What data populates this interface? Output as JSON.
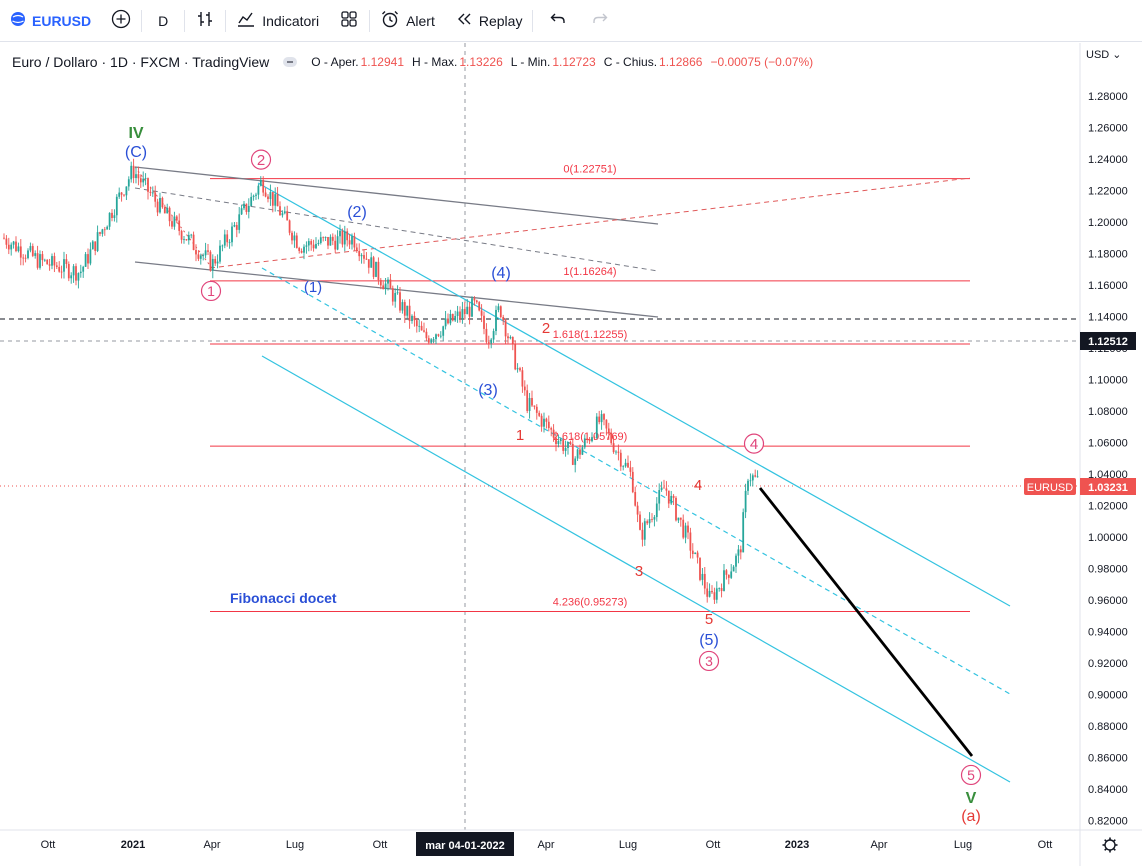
{
  "toolbar": {
    "symbol": "EURUSD",
    "interval": "D",
    "indicators_label": "Indicatori",
    "alert_label": "Alert",
    "replay_label": "Replay"
  },
  "legend": {
    "title": "Euro / Dollaro · 1D · FXCM · TradingView",
    "o_label": "O - Aper.",
    "o_value": "1.12941",
    "h_label": "H - Max.",
    "h_value": "1.13226",
    "l_label": "L - Min.",
    "l_value": "1.12723",
    "c_label": "C - Chius.",
    "c_value": "1.12866",
    "change": "−0.00075 (−0.07%)"
  },
  "price_axis": {
    "currency": "USD",
    "ticks": [
      "1.28000",
      "1.26000",
      "1.24000",
      "1.22000",
      "1.20000",
      "1.18000",
      "1.16000",
      "1.14000",
      "1.12000",
      "1.10000",
      "1.08000",
      "1.06000",
      "1.04000",
      "1.02000",
      "1.00000",
      "0.98000",
      "0.96000",
      "0.94000",
      "0.92000",
      "0.90000",
      "0.88000",
      "0.86000",
      "0.84000",
      "0.82000"
    ],
    "crosshair_price": "1.12512",
    "last_symbol": "EURUSD",
    "last_price": "1.03231"
  },
  "time_axis": {
    "labels": [
      "Ott",
      "2021",
      "Apr",
      "Lug",
      "Ott",
      "Apr",
      "Lug",
      "Ott",
      "2023",
      "Apr",
      "Lug",
      "Ott"
    ],
    "crosshair_date": "mar 04-01-2022"
  },
  "fib_levels": [
    {
      "label": "0(1.22751)",
      "value": 1.22751
    },
    {
      "label": "1(1.16264)",
      "value": 1.16264
    },
    {
      "label": "1.618(1.12255)",
      "value": 1.12255
    },
    {
      "label": "2.618(1.05769)",
      "value": 1.05769
    },
    {
      "label": "4.236(0.95273)",
      "value": 0.95273
    }
  ],
  "annotations": {
    "note": "Fibonacci docet",
    "wave_labels": [
      {
        "text": "IV",
        "color": "#388e3c"
      },
      {
        "text": "(C)",
        "color": "#2a4fd6"
      },
      {
        "text": "2",
        "color": "#e0457b"
      },
      {
        "text": "(2)",
        "color": "#2a4fd6"
      },
      {
        "text": "(4)",
        "color": "#2a4fd6"
      },
      {
        "text": "1",
        "color": "#e0457b"
      },
      {
        "text": "(1)",
        "color": "#2a4fd6"
      },
      {
        "text": "2",
        "color": "#e53935"
      },
      {
        "text": "(3)",
        "color": "#2a4fd6"
      },
      {
        "text": "1",
        "color": "#e53935"
      },
      {
        "text": "4",
        "color": "#e0457b"
      },
      {
        "text": "4",
        "color": "#e53935"
      },
      {
        "text": "3",
        "color": "#e53935"
      },
      {
        "text": "5",
        "color": "#e53935"
      },
      {
        "text": "(5)",
        "color": "#2a4fd6"
      },
      {
        "text": "3",
        "color": "#e0457b"
      },
      {
        "text": "5",
        "color": "#e0457b"
      },
      {
        "text": "V",
        "color": "#388e3c"
      },
      {
        "text": "(a)",
        "color": "#e53935"
      }
    ]
  },
  "colors": {
    "up": "#26a69a",
    "down": "#ef5350",
    "fib": "#f23645",
    "channel": "#33c3e0",
    "trend": "#787b86"
  }
}
